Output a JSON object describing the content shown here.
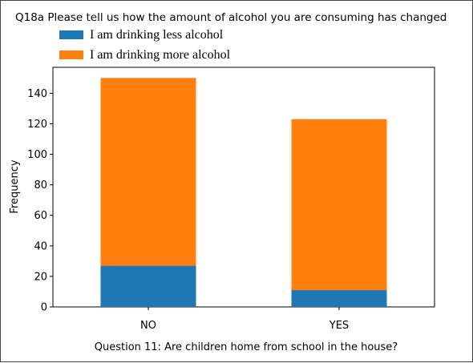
{
  "chart_data": {
    "type": "bar",
    "stacked": true,
    "title": "Q18a  Please tell us how the amount of alcohol you are consuming has changed",
    "xlabel": "Question 11: Are children home from school in the house?",
    "ylabel": "Frequency",
    "categories": [
      "NO",
      "YES"
    ],
    "series": [
      {
        "name": "I am drinking less alcohol",
        "color": "#1f77b4",
        "values": [
          27,
          11
        ]
      },
      {
        "name": "I am drinking more alcohol",
        "color": "#ff7f0e",
        "values": [
          123,
          112
        ]
      }
    ],
    "ylim": [
      0,
      157
    ],
    "yticks": [
      0,
      20,
      40,
      60,
      80,
      100,
      120,
      140
    ],
    "grid": false,
    "legend_position": "top-left"
  }
}
